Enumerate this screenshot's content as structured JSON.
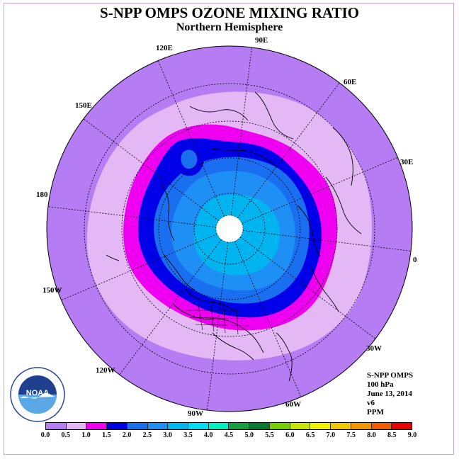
{
  "title": "S-NPP OMPS OZONE MIXING RATIO",
  "subtitle": "Northern Hemisphere",
  "longitude_labels": [
    {
      "text": "90E"
    },
    {
      "text": "60E"
    },
    {
      "text": "30E"
    },
    {
      "text": "0"
    },
    {
      "text": "30W"
    },
    {
      "text": "60W"
    },
    {
      "text": "90W"
    },
    {
      "text": "120W"
    },
    {
      "text": "150W"
    },
    {
      "text": "180"
    },
    {
      "text": "150E"
    },
    {
      "text": "120E"
    }
  ],
  "info": {
    "instrument": "S-NPP OMPS",
    "level": "100 hPa",
    "date": "June 13, 2014",
    "version": "v6",
    "units": "PPM"
  },
  "logo": {
    "text": "NOAA",
    "icon": "noaa-logo"
  },
  "colorbar": {
    "ticks": [
      "0.0",
      "0.5",
      "1.0",
      "1.5",
      "2.0",
      "2.5",
      "3.0",
      "3.5",
      "4.0",
      "4.5",
      "5.0",
      "5.5",
      "6.0",
      "6.5",
      "7.0",
      "7.5",
      "8.0",
      "8.5",
      "9.0"
    ],
    "colors": [
      "#b57cf3",
      "#e3b8f5",
      "#f000f0",
      "#0000e8",
      "#1a6ef0",
      "#1e90f5",
      "#00b4f0",
      "#00dcf0",
      "#00f0c0",
      "#14a040",
      "#0a7830",
      "#78d000",
      "#c8e600",
      "#f0f000",
      "#f0c800",
      "#f09600",
      "#f05a00",
      "#e60000",
      "#8c4620"
    ]
  },
  "map_colors": {
    "band_0_0.5": "#b57cf3",
    "band_0.5_1.0": "#e3b8f5",
    "band_1.0_1.5": "#f000f0",
    "band_1.5_2.0": "#0000e8",
    "band_2.0_2.5": "#1a6ef0",
    "band_2.5_3.0": "#1e90f5",
    "band_3.0_3.5": "#00b4f0",
    "no_data": "#ffffff"
  }
}
